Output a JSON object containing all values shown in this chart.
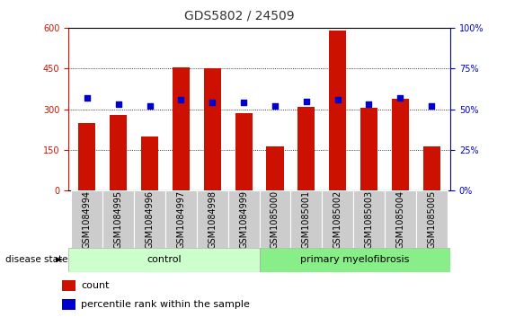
{
  "title": "GDS5802 / 24509",
  "samples": [
    "GSM1084994",
    "GSM1084995",
    "GSM1084996",
    "GSM1084997",
    "GSM1084998",
    "GSM1084999",
    "GSM1085000",
    "GSM1085001",
    "GSM1085002",
    "GSM1085003",
    "GSM1085004",
    "GSM1085005"
  ],
  "counts": [
    250,
    280,
    200,
    455,
    452,
    285,
    162,
    310,
    590,
    305,
    340,
    162
  ],
  "percentiles": [
    57,
    53,
    52,
    56,
    54,
    54,
    52,
    55,
    56,
    53,
    57,
    52
  ],
  "n_control": 6,
  "n_disease": 6,
  "bar_color": "#cc1100",
  "dot_color": "#0000cc",
  "ylim_left": [
    0,
    600
  ],
  "ylim_right": [
    0,
    100
  ],
  "yticks_left": [
    0,
    150,
    300,
    450,
    600
  ],
  "yticks_right": [
    0,
    25,
    50,
    75,
    100
  ],
  "ytick_labels_right": [
    "0%",
    "25%",
    "50%",
    "75%",
    "100%"
  ],
  "control_label": "control",
  "disease_label": "primary myelofibrosis",
  "disease_state_label": "disease state",
  "legend_count": "count",
  "legend_pct": "percentile rank within the sample",
  "control_color": "#ccffcc",
  "disease_color": "#88ee88",
  "left_axis_color": "#cc1100",
  "right_axis_color": "#0000cc",
  "background_color": "#ffffff",
  "ticklabel_bg": "#cccccc",
  "title_fontsize": 10,
  "tick_fontsize": 7,
  "label_fontsize": 7,
  "band_fontsize": 8,
  "legend_fontsize": 8
}
